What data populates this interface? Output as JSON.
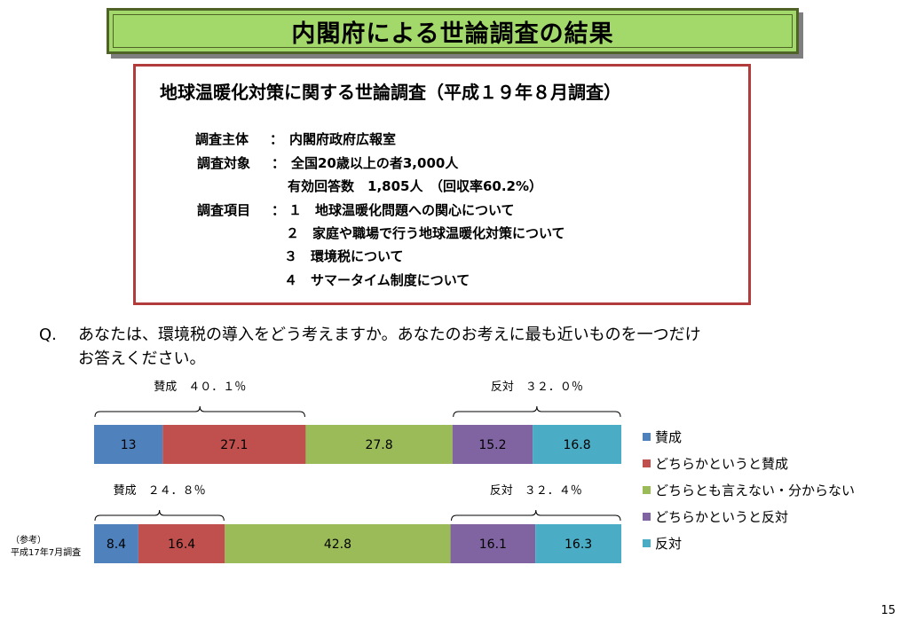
{
  "title": "内閣府による世論調査の結果",
  "survey": {
    "heading": "地球温暖化対策に関する世論調査（平成１９年８月調査）",
    "rows": [
      {
        "label": "調査主体",
        "sep": "：",
        "value": "内閣府政府広報室"
      },
      {
        "label": "調査対象",
        "sep": "：",
        "value": "全国20歳以上の者3,000人"
      },
      {
        "label": "",
        "sep": "",
        "value": "有効回答数　1,805人　（回収率60.2%）"
      },
      {
        "label": "調査項目",
        "sep": "：",
        "value": "１　地球温暖化問題への関心について"
      },
      {
        "label": "",
        "sep": "",
        "value": "２　家庭や職場で行う地球温暖化対策について"
      },
      {
        "label": "",
        "sep": "",
        "value": "３　環境税について"
      },
      {
        "label": "",
        "sep": "",
        "value": "４　サマータイム制度について"
      }
    ]
  },
  "question": {
    "label": "Q.",
    "line1": "あなたは、環境税の導入をどう考えますか。あなたのお考えに最も近いものを一つだけ",
    "line2": "お答えください。"
  },
  "chart_data": {
    "type": "bar",
    "orientation": "horizontal",
    "stacked": true,
    "percent": true,
    "categories": [
      "",
      "（参考）平成17年7月調査"
    ],
    "series": [
      {
        "name": "賛成",
        "values": [
          13,
          8.4
        ],
        "color": "#4f81bd"
      },
      {
        "name": "どちらかというと賛成",
        "values": [
          27.1,
          16.4
        ],
        "color": "#c0504d"
      },
      {
        "name": "どちらとも言えない・分からない",
        "values": [
          27.8,
          42.8
        ],
        "color": "#9bbb59"
      },
      {
        "name": "どちらかというと反対",
        "values": [
          15.2,
          16.1
        ],
        "color": "#8064a2"
      },
      {
        "name": "反対",
        "values": [
          16.8,
          16.3
        ],
        "color": "#4bacc6"
      }
    ],
    "annotations": [
      {
        "bar": 0,
        "side": "left",
        "text": "賛成　４０．１％"
      },
      {
        "bar": 0,
        "side": "right",
        "text": "反対　３２．０％"
      },
      {
        "bar": 1,
        "side": "left",
        "text": "賛成　２４．８％"
      },
      {
        "bar": 1,
        "side": "right",
        "text": "反対　３２．４％"
      }
    ],
    "legend_position": "right",
    "category_label_lines": [
      "（参考）",
      "平成17年7月調査"
    ]
  },
  "page_number": "15"
}
